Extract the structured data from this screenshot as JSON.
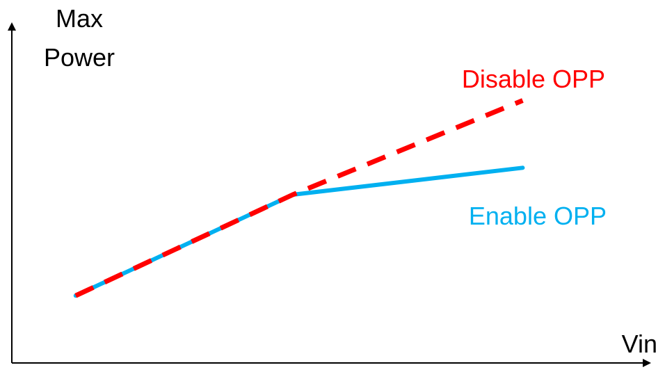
{
  "chart_data": {
    "type": "line",
    "title": "",
    "xlabel": "Vin",
    "ylabel": "Max Power",
    "ylabel_lines": [
      "Max",
      "Power"
    ],
    "xlim": [
      0,
      10
    ],
    "ylim": [
      0,
      10
    ],
    "grid": false,
    "series": [
      {
        "name": "Enable OPP",
        "color": "#00b0f0",
        "style": "solid",
        "x": [
          1.0,
          4.4,
          8.0
        ],
        "y": [
          2.0,
          5.0,
          5.8
        ]
      },
      {
        "name": "Disable OPP",
        "color": "#ff0000",
        "style": "dashed",
        "x": [
          1.0,
          4.4,
          8.0
        ],
        "y": [
          2.0,
          5.0,
          7.8
        ]
      }
    ]
  }
}
